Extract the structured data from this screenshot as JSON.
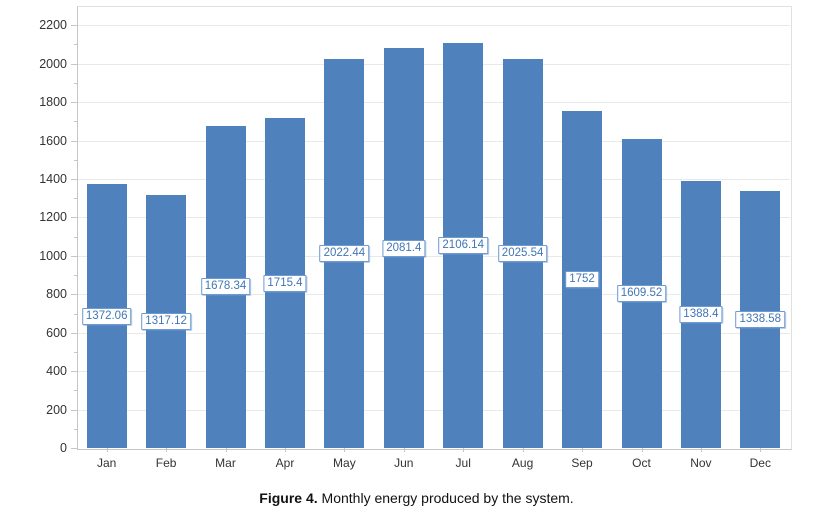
{
  "figure": {
    "caption_bold": "Figure 4.",
    "caption_rest": " Monthly energy produced by the system."
  },
  "chart_data": {
    "type": "bar",
    "title": "",
    "xlabel": "",
    "ylabel": "",
    "categories": [
      "Jan",
      "Feb",
      "Mar",
      "Apr",
      "May",
      "Jun",
      "Jul",
      "Aug",
      "Sep",
      "Oct",
      "Nov",
      "Dec"
    ],
    "values": [
      1372.06,
      1317.12,
      1678.34,
      1715.4,
      2022.44,
      2081.4,
      2106.14,
      2025.54,
      1752,
      1609.52,
      1388.4,
      1338.58
    ],
    "data_labels": [
      "1372.06",
      "1317.12",
      "1678.34",
      "1715.4",
      "2022.44",
      "2081.4",
      "2106.14",
      "2025.54",
      "1752",
      "1609.52",
      "1388.4",
      "1338.58"
    ],
    "ylim": [
      0,
      2300
    ],
    "yticks": [
      0,
      200,
      400,
      600,
      800,
      1000,
      1200,
      1400,
      1600,
      1800,
      2000,
      2200
    ],
    "minor_tick_step": 100,
    "grid": true,
    "legend": false,
    "colors": {
      "bar_fill": "#4f81bd",
      "data_label_text": "#4176b6",
      "data_label_border": "#6d9ad0",
      "gridline": "#e9e9e9",
      "axis_line": "#c6c6c6",
      "plot_border": "#e0e0e0",
      "tick_label": "#333333"
    }
  }
}
